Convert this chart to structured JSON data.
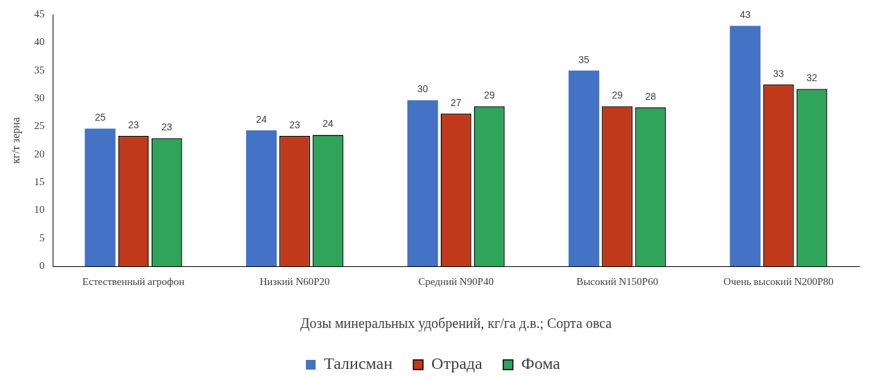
{
  "chart_data": {
    "type": "bar",
    "xlabel": "Дозы минеральных удобрений, кг/га д.в.; Сорта овса",
    "ylabel": "кг/т зерна",
    "categories": [
      "Естественный агрофон",
      "Низкий N60P20",
      "Средний N90P40",
      "Высокий N150P60",
      "Очень высокий N200P80"
    ],
    "series": [
      {
        "name": "Талисман",
        "color": "#4472c4",
        "values": [
          24.6,
          24.3,
          29.7,
          35,
          43
        ],
        "value_labels": [
          "25",
          "24",
          "30",
          "35",
          "43"
        ]
      },
      {
        "name": "Отрада",
        "color": "#c0391b",
        "values": [
          23.3,
          23.3,
          27.3,
          28.6,
          32.5
        ],
        "value_labels": [
          "23",
          "23",
          "27",
          "29",
          "33"
        ]
      },
      {
        "name": "Фома",
        "color": "#2ea55a",
        "values": [
          22.9,
          23.5,
          28.6,
          28.4,
          31.7
        ],
        "value_labels": [
          "23",
          "24",
          "29",
          "28",
          "32"
        ]
      }
    ],
    "ylim": [
      0,
      45
    ],
    "yticks": [
      0,
      5,
      10,
      15,
      20,
      25,
      30,
      35,
      40,
      45
    ],
    "grid": false,
    "legend": "bottom"
  }
}
